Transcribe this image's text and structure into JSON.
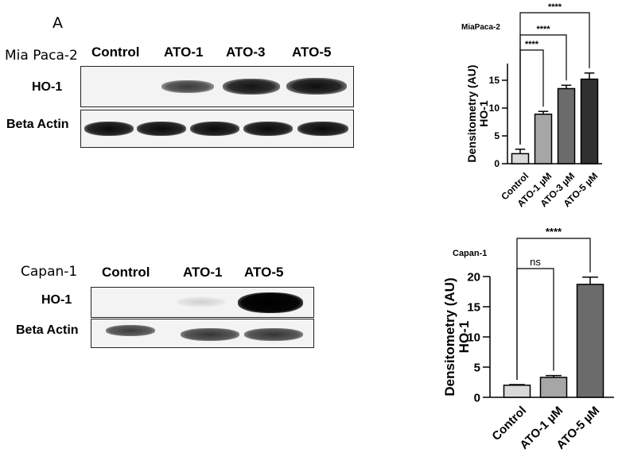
{
  "panel_label": "A",
  "mia": {
    "cell_line": "Mia Paca-2",
    "lanes": [
      "Control",
      "ATO-1",
      "ATO-3",
      "ATO-5"
    ],
    "rows": [
      "HO-1",
      "Beta Actin"
    ]
  },
  "capan": {
    "cell_line": "Capan-1",
    "lanes": [
      "Control",
      "ATO-1",
      "ATO-5"
    ],
    "rows": [
      "HO-1",
      "Beta Actin"
    ]
  },
  "chart_data": [
    {
      "type": "bar",
      "title": "MiaPaca-2",
      "categories": [
        "Control",
        "ATO-1 µM",
        "ATO-3 µM",
        "ATO-5 µM"
      ],
      "values": [
        1.8,
        8.9,
        13.5,
        15.2
      ],
      "errors": [
        0.8,
        0.5,
        0.6,
        1.1
      ],
      "colors": [
        "#d9d9d9",
        "#a6a6a6",
        "#6b6b6b",
        "#303030"
      ],
      "ylabel": [
        "Densitometry (AU)",
        "HO-1"
      ],
      "ylim": [
        0,
        18
      ],
      "yticks": [
        0,
        5,
        10,
        15
      ],
      "significance": [
        {
          "from": 0,
          "to": 1,
          "label": "****"
        },
        {
          "from": 0,
          "to": 2,
          "label": "****"
        },
        {
          "from": 0,
          "to": 3,
          "label": "****"
        }
      ]
    },
    {
      "type": "bar",
      "title": "Capan-1",
      "categories": [
        "Control",
        "ATO-1 µM",
        "ATO-5 µM"
      ],
      "values": [
        2.0,
        3.3,
        18.7
      ],
      "errors": [
        0.1,
        0.3,
        1.2
      ],
      "colors": [
        "#d9d9d9",
        "#a6a6a6",
        "#6b6b6b"
      ],
      "ylabel": [
        "Densitometry (AU)",
        "HO-1"
      ],
      "ylim": [
        0,
        20
      ],
      "yticks": [
        0,
        5,
        10,
        15,
        20
      ],
      "significance": [
        {
          "from": 0,
          "to": 1,
          "label": "ns"
        },
        {
          "from": 0,
          "to": 2,
          "label": "****"
        }
      ]
    }
  ]
}
